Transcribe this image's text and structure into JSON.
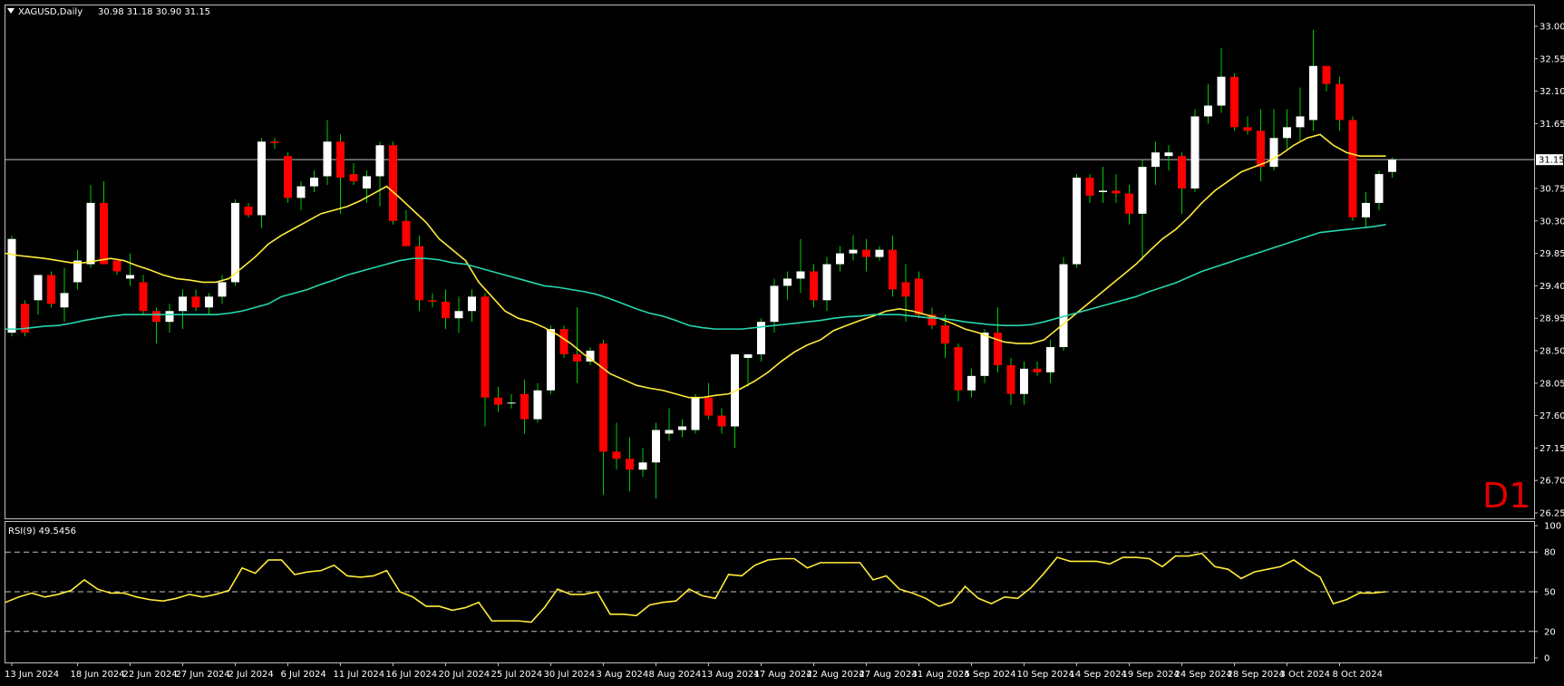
{
  "header": {
    "symbol": "XAGUSD,Daily",
    "ohlc": "30.98 31.18 30.90 31.15"
  },
  "timeframe_label": "D1",
  "colors": {
    "background": "#000000",
    "frame": "#c0c0c0",
    "bull_candle": "#ffffff",
    "bear_candle": "#ff0000",
    "wick": "#00cc00",
    "ma_fast": "#ffeb3b",
    "ma_slow": "#26d7ae",
    "rsi_line": "#ffeb3b",
    "price_line": "#c0c0c0"
  },
  "chart_data": [
    {
      "type": "candlestick",
      "symbol": "XAGUSD",
      "timeframe": "Daily",
      "current_price": 31.15,
      "ylim": [
        26.25,
        33.0
      ],
      "y_ticks": [
        "33.00",
        "32.55",
        "32.10",
        "31.65",
        "31.15",
        "30.75",
        "30.30",
        "29.85",
        "29.40",
        "28.95",
        "28.50",
        "28.05",
        "27.60",
        "27.15",
        "26.70",
        "26.25"
      ],
      "x_ticks": [
        {
          "label": "13 Jun 2024",
          "index": 0
        },
        {
          "label": "18 Jun 2024",
          "index": 5
        },
        {
          "label": "22 Jun 2024",
          "index": 9
        },
        {
          "label": "27 Jun 2024",
          "index": 13
        },
        {
          "label": "2 Jul 2024",
          "index": 17
        },
        {
          "label": "6 Jul 2024",
          "index": 21
        },
        {
          "label": "11 Jul 2024",
          "index": 25
        },
        {
          "label": "16 Jul 2024",
          "index": 29
        },
        {
          "label": "20 Jul 2024",
          "index": 33
        },
        {
          "label": "25 Jul 2024",
          "index": 37
        },
        {
          "label": "30 Jul 2024",
          "index": 41
        },
        {
          "label": "3 Aug 2024",
          "index": 45
        },
        {
          "label": "8 Aug 2024",
          "index": 49
        },
        {
          "label": "13 Aug 2024",
          "index": 53
        },
        {
          "label": "17 Aug 2024",
          "index": 57
        },
        {
          "label": "22 Aug 2024",
          "index": 61
        },
        {
          "label": "27 Aug 2024",
          "index": 65
        },
        {
          "label": "31 Aug 2024",
          "index": 69
        },
        {
          "label": "5 Sep 2024",
          "index": 73
        },
        {
          "label": "10 Sep 2024",
          "index": 77
        },
        {
          "label": "14 Sep 2024",
          "index": 81
        },
        {
          "label": "19 Sep 2024",
          "index": 85
        },
        {
          "label": "24 Sep 2024",
          "index": 89
        },
        {
          "label": "28 Sep 2024",
          "index": 93
        },
        {
          "label": "3 Oct 2024",
          "index": 97
        },
        {
          "label": "8 Oct 2024",
          "index": 101
        }
      ],
      "candles": [
        {
          "o": 28.75,
          "h": 30.1,
          "l": 28.7,
          "c": 30.05
        },
        {
          "o": 29.15,
          "h": 29.2,
          "l": 28.7,
          "c": 28.75
        },
        {
          "o": 29.2,
          "h": 29.55,
          "l": 29.0,
          "c": 29.55
        },
        {
          "o": 29.55,
          "h": 29.6,
          "l": 29.1,
          "c": 29.15
        },
        {
          "o": 29.1,
          "h": 29.65,
          "l": 28.9,
          "c": 29.3
        },
        {
          "o": 29.45,
          "h": 29.9,
          "l": 29.35,
          "c": 29.75
        },
        {
          "o": 29.7,
          "h": 30.8,
          "l": 29.65,
          "c": 30.55
        },
        {
          "o": 30.55,
          "h": 30.85,
          "l": 29.7,
          "c": 29.7
        },
        {
          "o": 29.75,
          "h": 29.75,
          "l": 29.55,
          "c": 29.6
        },
        {
          "o": 29.5,
          "h": 29.85,
          "l": 29.4,
          "c": 29.55
        },
        {
          "o": 29.45,
          "h": 29.55,
          "l": 29.0,
          "c": 29.05
        },
        {
          "o": 29.05,
          "h": 29.1,
          "l": 28.6,
          "c": 28.9
        },
        {
          "o": 28.9,
          "h": 29.15,
          "l": 28.75,
          "c": 29.05
        },
        {
          "o": 29.05,
          "h": 29.35,
          "l": 28.8,
          "c": 29.25
        },
        {
          "o": 29.25,
          "h": 29.35,
          "l": 29.05,
          "c": 29.1
        },
        {
          "o": 29.1,
          "h": 29.3,
          "l": 29.0,
          "c": 29.25
        },
        {
          "o": 29.25,
          "h": 29.55,
          "l": 29.15,
          "c": 29.45
        },
        {
          "o": 29.45,
          "h": 30.6,
          "l": 29.4,
          "c": 30.55
        },
        {
          "o": 30.5,
          "h": 30.55,
          "l": 30.35,
          "c": 30.38
        },
        {
          "o": 30.38,
          "h": 31.45,
          "l": 30.2,
          "c": 31.4
        },
        {
          "o": 31.4,
          "h": 31.45,
          "l": 31.3,
          "c": 31.38
        },
        {
          "o": 31.2,
          "h": 31.25,
          "l": 30.55,
          "c": 30.62
        },
        {
          "o": 30.62,
          "h": 30.85,
          "l": 30.45,
          "c": 30.78
        },
        {
          "o": 30.78,
          "h": 31.0,
          "l": 30.7,
          "c": 30.9
        },
        {
          "o": 30.92,
          "h": 31.7,
          "l": 30.8,
          "c": 31.4
        },
        {
          "o": 31.4,
          "h": 31.5,
          "l": 30.4,
          "c": 30.9
        },
        {
          "o": 30.95,
          "h": 31.1,
          "l": 30.8,
          "c": 30.85
        },
        {
          "o": 30.75,
          "h": 31.0,
          "l": 30.55,
          "c": 30.92
        },
        {
          "o": 30.92,
          "h": 31.4,
          "l": 30.5,
          "c": 31.35
        },
        {
          "o": 31.35,
          "h": 31.4,
          "l": 30.25,
          "c": 30.3
        },
        {
          "o": 30.3,
          "h": 30.45,
          "l": 29.95,
          "c": 29.95
        },
        {
          "o": 29.95,
          "h": 30.1,
          "l": 29.05,
          "c": 29.2
        },
        {
          "o": 29.2,
          "h": 29.3,
          "l": 29.1,
          "c": 29.18
        },
        {
          "o": 29.18,
          "h": 29.35,
          "l": 28.8,
          "c": 28.95
        },
        {
          "o": 28.95,
          "h": 29.25,
          "l": 28.75,
          "c": 29.05
        },
        {
          "o": 29.05,
          "h": 29.35,
          "l": 28.9,
          "c": 29.25
        },
        {
          "o": 29.25,
          "h": 29.3,
          "l": 27.45,
          "c": 27.85
        },
        {
          "o": 27.85,
          "h": 28.0,
          "l": 27.65,
          "c": 27.75
        },
        {
          "o": 27.78,
          "h": 27.9,
          "l": 27.7,
          "c": 27.78
        },
        {
          "o": 27.9,
          "h": 28.1,
          "l": 27.35,
          "c": 27.55
        },
        {
          "o": 27.55,
          "h": 28.05,
          "l": 27.5,
          "c": 27.95
        },
        {
          "o": 27.95,
          "h": 28.85,
          "l": 27.9,
          "c": 28.8
        },
        {
          "o": 28.8,
          "h": 28.85,
          "l": 28.4,
          "c": 28.45
        },
        {
          "o": 28.45,
          "h": 29.1,
          "l": 28.05,
          "c": 28.35
        },
        {
          "o": 28.35,
          "h": 28.55,
          "l": 28.3,
          "c": 28.5
        },
        {
          "o": 28.6,
          "h": 28.65,
          "l": 26.5,
          "c": 27.1
        },
        {
          "o": 27.1,
          "h": 27.5,
          "l": 26.85,
          "c": 27.0
        },
        {
          "o": 27.0,
          "h": 27.3,
          "l": 26.55,
          "c": 26.85
        },
        {
          "o": 26.85,
          "h": 27.15,
          "l": 26.75,
          "c": 26.95
        },
        {
          "o": 26.95,
          "h": 27.5,
          "l": 26.45,
          "c": 27.4
        },
        {
          "o": 27.35,
          "h": 27.7,
          "l": 27.25,
          "c": 27.4
        },
        {
          "o": 27.4,
          "h": 27.55,
          "l": 27.3,
          "c": 27.45
        },
        {
          "o": 27.4,
          "h": 27.9,
          "l": 27.35,
          "c": 27.85
        },
        {
          "o": 27.85,
          "h": 28.05,
          "l": 27.55,
          "c": 27.6
        },
        {
          "o": 27.6,
          "h": 27.7,
          "l": 27.35,
          "c": 27.45
        },
        {
          "o": 27.45,
          "h": 28.45,
          "l": 27.15,
          "c": 28.45
        },
        {
          "o": 28.4,
          "h": 28.45,
          "l": 28.0,
          "c": 28.45
        },
        {
          "o": 28.45,
          "h": 28.95,
          "l": 28.35,
          "c": 28.9
        },
        {
          "o": 28.9,
          "h": 29.5,
          "l": 28.75,
          "c": 29.4
        },
        {
          "o": 29.4,
          "h": 29.6,
          "l": 29.2,
          "c": 29.5
        },
        {
          "o": 29.5,
          "h": 30.05,
          "l": 29.3,
          "c": 29.6
        },
        {
          "o": 29.6,
          "h": 29.7,
          "l": 29.1,
          "c": 29.2
        },
        {
          "o": 29.2,
          "h": 29.8,
          "l": 29.05,
          "c": 29.7
        },
        {
          "o": 29.7,
          "h": 29.95,
          "l": 29.6,
          "c": 29.85
        },
        {
          "o": 29.85,
          "h": 30.1,
          "l": 29.75,
          "c": 29.9
        },
        {
          "o": 29.9,
          "h": 30.05,
          "l": 29.6,
          "c": 29.8
        },
        {
          "o": 29.8,
          "h": 29.95,
          "l": 29.75,
          "c": 29.9
        },
        {
          "o": 29.9,
          "h": 30.1,
          "l": 29.25,
          "c": 29.35
        },
        {
          "o": 29.45,
          "h": 29.7,
          "l": 28.9,
          "c": 29.25
        },
        {
          "o": 29.5,
          "h": 29.6,
          "l": 28.95,
          "c": 29.0
        },
        {
          "o": 29.0,
          "h": 29.1,
          "l": 28.8,
          "c": 28.85
        },
        {
          "o": 28.85,
          "h": 29.0,
          "l": 28.4,
          "c": 28.6
        },
        {
          "o": 28.55,
          "h": 28.6,
          "l": 27.8,
          "c": 27.95
        },
        {
          "o": 27.95,
          "h": 28.25,
          "l": 27.85,
          "c": 28.15
        },
        {
          "o": 28.15,
          "h": 28.8,
          "l": 28.05,
          "c": 28.75
        },
        {
          "o": 28.75,
          "h": 29.1,
          "l": 28.2,
          "c": 28.3
        },
        {
          "o": 28.3,
          "h": 28.4,
          "l": 27.75,
          "c": 27.9
        },
        {
          "o": 27.9,
          "h": 28.35,
          "l": 27.75,
          "c": 28.25
        },
        {
          "o": 28.25,
          "h": 28.35,
          "l": 28.15,
          "c": 28.2
        },
        {
          "o": 28.2,
          "h": 28.65,
          "l": 28.05,
          "c": 28.55
        },
        {
          "o": 28.55,
          "h": 29.8,
          "l": 28.5,
          "c": 29.7
        },
        {
          "o": 29.7,
          "h": 30.95,
          "l": 29.65,
          "c": 30.9
        },
        {
          "o": 30.9,
          "h": 30.95,
          "l": 30.55,
          "c": 30.65
        },
        {
          "o": 30.7,
          "h": 31.05,
          "l": 30.55,
          "c": 30.72
        },
        {
          "o": 30.72,
          "h": 30.95,
          "l": 30.55,
          "c": 30.68
        },
        {
          "o": 30.68,
          "h": 30.8,
          "l": 30.25,
          "c": 30.4
        },
        {
          "o": 30.4,
          "h": 31.15,
          "l": 29.75,
          "c": 31.05
        },
        {
          "o": 31.05,
          "h": 31.4,
          "l": 30.8,
          "c": 31.25
        },
        {
          "o": 31.2,
          "h": 31.35,
          "l": 31.0,
          "c": 31.25
        },
        {
          "o": 31.2,
          "h": 31.25,
          "l": 30.4,
          "c": 30.75
        },
        {
          "o": 30.75,
          "h": 31.85,
          "l": 30.7,
          "c": 31.75
        },
        {
          "o": 31.75,
          "h": 32.2,
          "l": 31.65,
          "c": 31.9
        },
        {
          "o": 31.9,
          "h": 32.7,
          "l": 31.8,
          "c": 32.3
        },
        {
          "o": 32.3,
          "h": 32.35,
          "l": 31.55,
          "c": 31.6
        },
        {
          "o": 31.6,
          "h": 31.75,
          "l": 31.5,
          "c": 31.55
        },
        {
          "o": 31.55,
          "h": 31.85,
          "l": 30.85,
          "c": 31.05
        },
        {
          "o": 31.05,
          "h": 31.85,
          "l": 31.0,
          "c": 31.45
        },
        {
          "o": 31.45,
          "h": 31.85,
          "l": 31.3,
          "c": 31.6
        },
        {
          "o": 31.6,
          "h": 32.15,
          "l": 31.4,
          "c": 31.75
        },
        {
          "o": 31.7,
          "h": 32.95,
          "l": 31.55,
          "c": 32.45
        },
        {
          "o": 32.45,
          "h": 32.45,
          "l": 32.1,
          "c": 32.2
        },
        {
          "o": 32.2,
          "h": 32.3,
          "l": 31.55,
          "c": 31.7
        },
        {
          "o": 31.7,
          "h": 31.75,
          "l": 30.3,
          "c": 30.35
        },
        {
          "o": 30.35,
          "h": 30.7,
          "l": 30.2,
          "c": 30.55
        },
        {
          "o": 30.55,
          "h": 31.0,
          "l": 30.45,
          "c": 30.95
        },
        {
          "o": 30.98,
          "h": 31.18,
          "l": 30.9,
          "c": 31.15
        }
      ],
      "ma_fast": [
        29.85,
        29.82,
        29.8,
        29.78,
        29.75,
        29.72,
        29.72,
        29.75,
        29.78,
        29.75,
        29.68,
        29.62,
        29.55,
        29.5,
        29.48,
        29.45,
        29.45,
        29.5,
        29.65,
        29.8,
        29.98,
        30.1,
        30.2,
        30.3,
        30.4,
        30.45,
        30.5,
        30.58,
        30.68,
        30.78,
        30.62,
        30.45,
        30.28,
        30.05,
        29.9,
        29.75,
        29.45,
        29.25,
        29.05,
        28.95,
        28.9,
        28.82,
        28.72,
        28.6,
        28.45,
        28.32,
        28.18,
        28.1,
        28.02,
        27.98,
        27.95,
        27.9,
        27.85,
        27.85,
        27.88,
        27.9,
        27.98,
        28.08,
        28.2,
        28.35,
        28.48,
        28.58,
        28.65,
        28.78,
        28.85,
        28.92,
        28.98,
        29.05,
        29.08,
        29.05,
        29.0,
        28.95,
        28.88,
        28.8,
        28.75,
        28.68,
        28.62,
        28.6,
        28.6,
        28.65,
        28.8,
        28.95,
        29.1,
        29.25,
        29.4,
        29.55,
        29.7,
        29.88,
        30.05,
        30.18,
        30.35,
        30.55,
        30.72,
        30.85,
        30.98,
        31.05,
        31.12,
        31.22,
        31.35,
        31.45,
        31.5,
        31.35,
        31.25,
        31.2,
        31.2,
        31.2
      ],
      "ma_slow": [
        28.8,
        28.8,
        28.82,
        28.84,
        28.85,
        28.88,
        28.92,
        28.95,
        28.98,
        29.0,
        29.0,
        29.0,
        29.0,
        29.0,
        29.0,
        29.0,
        29.0,
        29.02,
        29.05,
        29.1,
        29.15,
        29.25,
        29.3,
        29.35,
        29.42,
        29.48,
        29.55,
        29.6,
        29.65,
        29.7,
        29.75,
        29.78,
        29.78,
        29.76,
        29.72,
        29.7,
        29.65,
        29.6,
        29.55,
        29.5,
        29.45,
        29.4,
        29.38,
        29.35,
        29.32,
        29.28,
        29.22,
        29.15,
        29.08,
        29.02,
        28.98,
        28.92,
        28.85,
        28.82,
        28.8,
        28.8,
        28.8,
        28.82,
        28.84,
        28.86,
        28.88,
        28.9,
        28.92,
        28.95,
        28.97,
        28.98,
        29.0,
        29.0,
        29.0,
        28.98,
        28.96,
        28.95,
        28.93,
        28.9,
        28.88,
        28.86,
        28.85,
        28.85,
        28.86,
        28.9,
        28.95,
        29.0,
        29.05,
        29.1,
        29.15,
        29.2,
        29.25,
        29.32,
        29.38,
        29.44,
        29.52,
        29.6,
        29.66,
        29.72,
        29.78,
        29.84,
        29.9,
        29.96,
        30.02,
        30.08,
        30.14,
        30.16,
        30.18,
        30.2,
        30.22,
        30.25
      ]
    },
    {
      "type": "line",
      "title": "RSI(9) 49.5456",
      "ylim": [
        0,
        100
      ],
      "y_ticks": [
        100,
        80,
        50,
        20,
        0
      ],
      "levels": [
        80,
        50,
        20
      ],
      "values": [
        42,
        46,
        49,
        46,
        48,
        51,
        59,
        52,
        49,
        49,
        46,
        44,
        43,
        45,
        48,
        46,
        48,
        51,
        68,
        64,
        74,
        74,
        63,
        65,
        66,
        70,
        62,
        61,
        62,
        66,
        50,
        46,
        39,
        39,
        36,
        38,
        42,
        28,
        28,
        28,
        27,
        38,
        52,
        48,
        48,
        50,
        33,
        33,
        32,
        40,
        42,
        43,
        52,
        47,
        45,
        63,
        62,
        70,
        74,
        75,
        75,
        68,
        72,
        72,
        72,
        72,
        59,
        62,
        52,
        49,
        45,
        39,
        42,
        54,
        45,
        41,
        46,
        45,
        53,
        64,
        76,
        73,
        73,
        73,
        71,
        76,
        76,
        75,
        69,
        77,
        77,
        79,
        69,
        67,
        60,
        65,
        67,
        69,
        74,
        67,
        61,
        41,
        44,
        49,
        49,
        50
      ]
    }
  ]
}
